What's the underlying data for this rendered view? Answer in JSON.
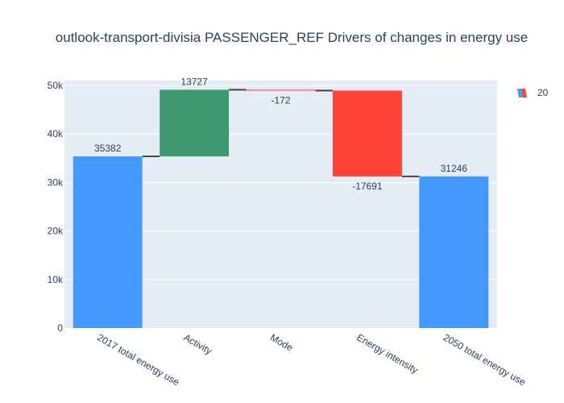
{
  "chart_data": {
    "type": "waterfall",
    "title": "outlook-transport-divisia PASSENGER_REF Drivers of changes in energy use",
    "xlabel": "",
    "ylabel": "",
    "categories": [
      "2017 total energy use",
      "Activity",
      "Mode",
      "Energy intensity",
      "2050 total energy use"
    ],
    "measures": [
      "absolute",
      "relative",
      "relative",
      "relative",
      "total"
    ],
    "values": [
      35382,
      13727,
      -172,
      -17691,
      31246
    ],
    "labels": [
      "35382",
      "13727",
      "-172",
      "-17691",
      "31246"
    ],
    "ylim": [
      0,
      51000
    ],
    "yticks": [
      0,
      10000,
      20000,
      30000,
      40000,
      50000
    ],
    "ytick_labels": [
      "0",
      "10k",
      "20k",
      "30k",
      "40k",
      "50k"
    ],
    "grid": true,
    "legend": {
      "label": "20",
      "placement": "top-right"
    },
    "colors": {
      "total": "#4499ff",
      "increase": "#3d9970",
      "decrease": "#ff4136",
      "connector": "#444444",
      "plot_bg": "#e5ecf6",
      "grid": "#ffffff",
      "text": "#2a3f5f"
    }
  }
}
